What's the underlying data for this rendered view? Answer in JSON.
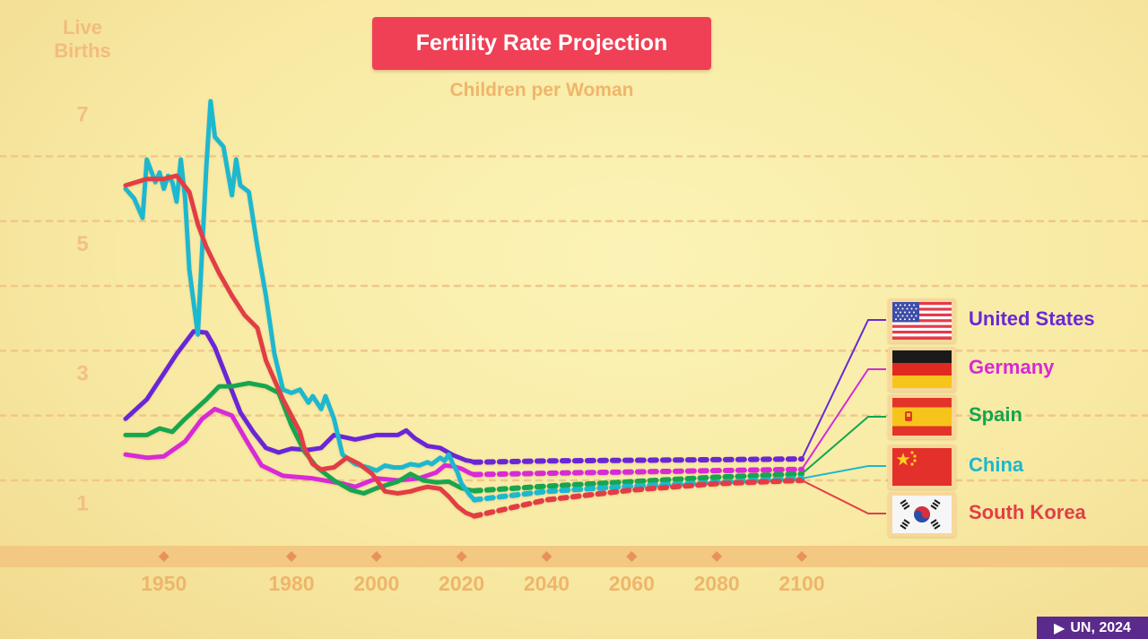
{
  "header": {
    "title": "Fertility Rate Projection",
    "subtitle": "Children per Woman",
    "ylabel": "Live Births"
  },
  "source": {
    "label": "UN, 2024",
    "icon": "play-icon"
  },
  "colors": {
    "background": "#f8eaa4",
    "title_bg": "#ef4056",
    "axis_text": "#efb56c",
    "axis_band": "#f2c882",
    "grid": "#f1c68a"
  },
  "chart_data": {
    "type": "line",
    "title": "Fertility Rate Projection",
    "subtitle": "Children per Woman",
    "ylabel": "Live Births",
    "xlabel": "",
    "xlim": [
      1941,
      2100
    ],
    "ylim": [
      0.7,
      7.6
    ],
    "x_ticks": [
      1950,
      1980,
      2000,
      2020,
      2040,
      2060,
      2080,
      2100
    ],
    "y_ticks": [
      1,
      3,
      5,
      7
    ],
    "y_gridlines": [
      1.35,
      2.35,
      3.35,
      4.35,
      5.35,
      6.35
    ],
    "series": [
      {
        "name": "United States",
        "color": "#6a28d6",
        "historical": [
          [
            1941,
            2.3
          ],
          [
            1946,
            2.6
          ],
          [
            1950,
            3.0
          ],
          [
            1953,
            3.3
          ],
          [
            1957,
            3.65
          ],
          [
            1960,
            3.63
          ],
          [
            1962,
            3.4
          ],
          [
            1965,
            2.9
          ],
          [
            1968,
            2.4
          ],
          [
            1971,
            2.1
          ],
          [
            1974,
            1.85
          ],
          [
            1977,
            1.78
          ],
          [
            1980,
            1.84
          ],
          [
            1984,
            1.82
          ],
          [
            1987,
            1.85
          ],
          [
            1990,
            2.05
          ],
          [
            1995,
            1.98
          ],
          [
            2000,
            2.05
          ],
          [
            2005,
            2.05
          ],
          [
            2007,
            2.12
          ],
          [
            2009,
            2.0
          ],
          [
            2012,
            1.88
          ],
          [
            2015,
            1.85
          ],
          [
            2018,
            1.74
          ],
          [
            2021,
            1.66
          ],
          [
            2022,
            1.65
          ],
          [
            2023,
            1.63
          ]
        ],
        "projection": [
          [
            2023,
            1.63
          ],
          [
            2040,
            1.65
          ],
          [
            2060,
            1.66
          ],
          [
            2080,
            1.67
          ],
          [
            2100,
            1.68
          ]
        ]
      },
      {
        "name": "Germany",
        "color": "#d829d6",
        "historical": [
          [
            1941,
            1.75
          ],
          [
            1946,
            1.7
          ],
          [
            1950,
            1.72
          ],
          [
            1955,
            1.95
          ],
          [
            1959,
            2.3
          ],
          [
            1962,
            2.45
          ],
          [
            1966,
            2.35
          ],
          [
            1970,
            1.9
          ],
          [
            1973,
            1.58
          ],
          [
            1978,
            1.42
          ],
          [
            1985,
            1.38
          ],
          [
            1992,
            1.3
          ],
          [
            1995,
            1.25
          ],
          [
            2000,
            1.38
          ],
          [
            2005,
            1.35
          ],
          [
            2010,
            1.38
          ],
          [
            2014,
            1.47
          ],
          [
            2016,
            1.58
          ],
          [
            2018,
            1.57
          ],
          [
            2020,
            1.53
          ],
          [
            2022,
            1.46
          ],
          [
            2023,
            1.44
          ]
        ],
        "projection": [
          [
            2023,
            1.44
          ],
          [
            2040,
            1.46
          ],
          [
            2060,
            1.48
          ],
          [
            2080,
            1.5
          ],
          [
            2100,
            1.52
          ]
        ]
      },
      {
        "name": "Spain",
        "color": "#12a650",
        "historical": [
          [
            1941,
            2.05
          ],
          [
            1946,
            2.05
          ],
          [
            1949,
            2.15
          ],
          [
            1952,
            2.1
          ],
          [
            1955,
            2.3
          ],
          [
            1960,
            2.6
          ],
          [
            1963,
            2.8
          ],
          [
            1966,
            2.8
          ],
          [
            1970,
            2.85
          ],
          [
            1974,
            2.8
          ],
          [
            1977,
            2.7
          ],
          [
            1980,
            2.2
          ],
          [
            1983,
            1.8
          ],
          [
            1986,
            1.55
          ],
          [
            1990,
            1.35
          ],
          [
            1994,
            1.2
          ],
          [
            1997,
            1.15
          ],
          [
            2000,
            1.23
          ],
          [
            2005,
            1.33
          ],
          [
            2008,
            1.45
          ],
          [
            2011,
            1.35
          ],
          [
            2014,
            1.32
          ],
          [
            2017,
            1.33
          ],
          [
            2020,
            1.23
          ],
          [
            2022,
            1.2
          ],
          [
            2023,
            1.19
          ]
        ],
        "projection": [
          [
            2023,
            1.19
          ],
          [
            2040,
            1.26
          ],
          [
            2060,
            1.33
          ],
          [
            2080,
            1.4
          ],
          [
            2100,
            1.45
          ]
        ]
      },
      {
        "name": "China",
        "color": "#1ab8cf",
        "historical": [
          [
            1941,
            5.85
          ],
          [
            1943,
            5.7
          ],
          [
            1945,
            5.4
          ],
          [
            1946,
            6.3
          ],
          [
            1948,
            5.95
          ],
          [
            1949,
            6.1
          ],
          [
            1950,
            5.85
          ],
          [
            1951,
            6.05
          ],
          [
            1952,
            5.95
          ],
          [
            1953,
            5.65
          ],
          [
            1954,
            6.3
          ],
          [
            1955,
            5.7
          ],
          [
            1956,
            4.6
          ],
          [
            1958,
            3.6
          ],
          [
            1960,
            6.2
          ],
          [
            1961,
            7.2
          ],
          [
            1962,
            6.65
          ],
          [
            1964,
            6.5
          ],
          [
            1966,
            5.75
          ],
          [
            1967,
            6.3
          ],
          [
            1968,
            5.9
          ],
          [
            1970,
            5.8
          ],
          [
            1972,
            4.95
          ],
          [
            1974,
            4.2
          ],
          [
            1976,
            3.3
          ],
          [
            1978,
            2.75
          ],
          [
            1980,
            2.7
          ],
          [
            1982,
            2.75
          ],
          [
            1984,
            2.55
          ],
          [
            1985,
            2.65
          ],
          [
            1987,
            2.45
          ],
          [
            1988,
            2.65
          ],
          [
            1990,
            2.3
          ],
          [
            1992,
            1.75
          ],
          [
            1995,
            1.6
          ],
          [
            1998,
            1.55
          ],
          [
            2000,
            1.5
          ],
          [
            2002,
            1.58
          ],
          [
            2004,
            1.55
          ],
          [
            2006,
            1.55
          ],
          [
            2008,
            1.6
          ],
          [
            2010,
            1.58
          ],
          [
            2012,
            1.63
          ],
          [
            2013,
            1.6
          ],
          [
            2015,
            1.7
          ],
          [
            2016,
            1.65
          ],
          [
            2017,
            1.75
          ],
          [
            2018,
            1.6
          ],
          [
            2019,
            1.48
          ],
          [
            2020,
            1.3
          ],
          [
            2022,
            1.12
          ],
          [
            2023,
            1.05
          ]
        ],
        "projection": [
          [
            2023,
            1.05
          ],
          [
            2040,
            1.18
          ],
          [
            2060,
            1.26
          ],
          [
            2080,
            1.32
          ],
          [
            2100,
            1.38
          ]
        ]
      },
      {
        "name": "South Korea",
        "color": "#e23e45",
        "historical": [
          [
            1941,
            5.9
          ],
          [
            1946,
            6.0
          ],
          [
            1950,
            6.0
          ],
          [
            1953,
            6.05
          ],
          [
            1956,
            5.8
          ],
          [
            1958,
            5.3
          ],
          [
            1960,
            4.95
          ],
          [
            1963,
            4.55
          ],
          [
            1966,
            4.2
          ],
          [
            1969,
            3.9
          ],
          [
            1972,
            3.7
          ],
          [
            1974,
            3.2
          ],
          [
            1976,
            2.9
          ],
          [
            1978,
            2.6
          ],
          [
            1980,
            2.35
          ],
          [
            1982,
            2.1
          ],
          [
            1983,
            1.85
          ],
          [
            1985,
            1.6
          ],
          [
            1987,
            1.52
          ],
          [
            1990,
            1.55
          ],
          [
            1993,
            1.7
          ],
          [
            1996,
            1.6
          ],
          [
            1999,
            1.45
          ],
          [
            2002,
            1.18
          ],
          [
            2005,
            1.15
          ],
          [
            2008,
            1.18
          ],
          [
            2010,
            1.22
          ],
          [
            2012,
            1.25
          ],
          [
            2015,
            1.22
          ],
          [
            2017,
            1.1
          ],
          [
            2019,
            0.95
          ],
          [
            2021,
            0.85
          ],
          [
            2023,
            0.8
          ]
        ],
        "projection": [
          [
            2023,
            0.8
          ],
          [
            2040,
            1.05
          ],
          [
            2060,
            1.2
          ],
          [
            2080,
            1.3
          ],
          [
            2100,
            1.35
          ]
        ]
      }
    ]
  }
}
